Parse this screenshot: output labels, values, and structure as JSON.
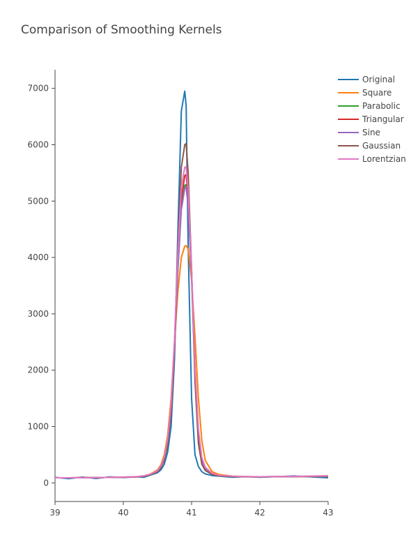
{
  "chart_data": {
    "type": "line",
    "title": "Comparison of Smoothing Kernels",
    "xlabel": "",
    "ylabel": "",
    "xlim": [
      39,
      43
    ],
    "ylim": [
      -330,
      7330
    ],
    "x_ticks": [
      "39",
      "40",
      "41",
      "42",
      "43"
    ],
    "y_ticks": [
      "0",
      "1000",
      "2000",
      "3000",
      "4000",
      "5000",
      "6000",
      "7000"
    ],
    "grid": false,
    "legend_position": "top-right",
    "peak_x": 40.92,
    "x": [
      39.0,
      39.2,
      39.4,
      39.6,
      39.8,
      40.0,
      40.2,
      40.3,
      40.4,
      40.5,
      40.55,
      40.6,
      40.65,
      40.7,
      40.75,
      40.8,
      40.85,
      40.9,
      40.92,
      40.95,
      41.0,
      41.05,
      41.1,
      41.15,
      41.2,
      41.3,
      41.4,
      41.6,
      41.8,
      42.0,
      42.5,
      43.0
    ],
    "series": [
      {
        "name": "Original",
        "color": "#1f77b4",
        "values": [
          90,
          85,
          95,
          88,
          100,
          105,
          100,
          110,
          140,
          180,
          230,
          330,
          550,
          1000,
          2200,
          4500,
          6600,
          6950,
          6700,
          4200,
          1500,
          500,
          290,
          200,
          160,
          130,
          120,
          110,
          105,
          110,
          115,
          100
        ]
      },
      {
        "name": "Square",
        "color": "#ff7f0e",
        "values": [
          90,
          90,
          92,
          94,
          98,
          102,
          110,
          125,
          160,
          230,
          320,
          500,
          850,
          1500,
          2500,
          3400,
          4000,
          4200,
          4210,
          4150,
          3600,
          2600,
          1500,
          750,
          400,
          200,
          150,
          120,
          112,
          108,
          112,
          115
        ]
      },
      {
        "name": "Parabolic",
        "color": "#2ca02c",
        "values": [
          90,
          90,
          92,
          94,
          98,
          102,
          108,
          120,
          150,
          210,
          290,
          430,
          720,
          1300,
          2400,
          3800,
          4900,
          5280,
          5290,
          4950,
          3700,
          2000,
          900,
          420,
          260,
          160,
          130,
          115,
          110,
          108,
          112,
          118
        ]
      },
      {
        "name": "Triangular",
        "color": "#d62728",
        "values": [
          90,
          90,
          92,
          94,
          98,
          102,
          108,
          120,
          150,
          210,
          290,
          430,
          730,
          1300,
          2400,
          3900,
          5050,
          5450,
          5470,
          5100,
          3750,
          2000,
          880,
          400,
          250,
          160,
          130,
          115,
          110,
          108,
          112,
          120
        ]
      },
      {
        "name": "Sine",
        "color": "#9467bd",
        "values": [
          90,
          90,
          92,
          94,
          98,
          102,
          108,
          120,
          150,
          210,
          290,
          430,
          730,
          1300,
          2400,
          3800,
          4850,
          5230,
          5250,
          4900,
          3650,
          1950,
          870,
          400,
          250,
          160,
          130,
          115,
          110,
          108,
          112,
          122
        ]
      },
      {
        "name": "Gaussian",
        "color": "#8c564b",
        "values": [
          90,
          90,
          92,
          94,
          98,
          102,
          108,
          118,
          145,
          200,
          270,
          400,
          680,
          1250,
          2450,
          4200,
          5600,
          6000,
          6020,
          5500,
          3800,
          1800,
          700,
          330,
          220,
          150,
          125,
          112,
          108,
          108,
          112,
          124
        ]
      },
      {
        "name": "Lorentzian",
        "color": "#e377c2",
        "values": [
          90,
          90,
          92,
          94,
          98,
          104,
          112,
          125,
          155,
          215,
          300,
          450,
          780,
          1400,
          2550,
          4100,
          5250,
          5600,
          5610,
          5200,
          3800,
          2050,
          950,
          450,
          280,
          170,
          135,
          118,
          112,
          110,
          115,
          126
        ]
      }
    ]
  }
}
